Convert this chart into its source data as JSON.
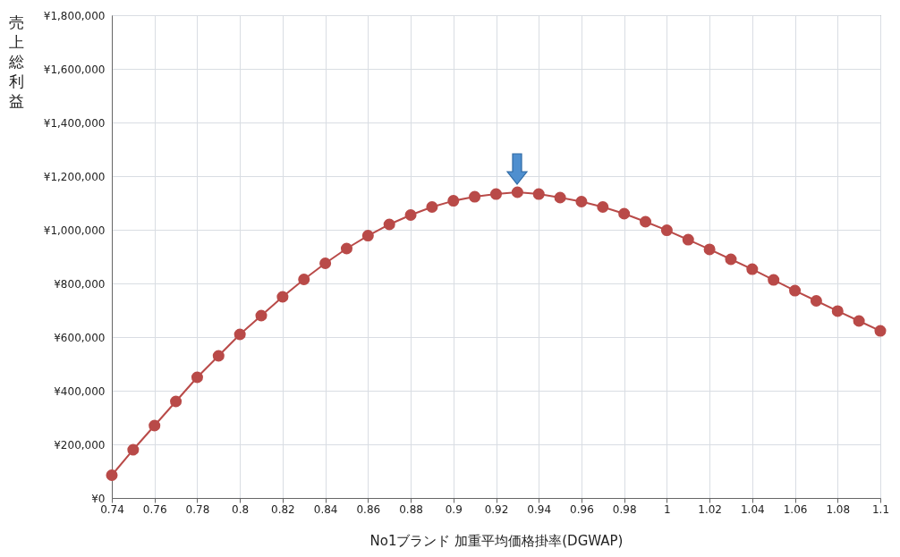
{
  "chart_data": {
    "type": "line",
    "xlabel": "No1ブランド 加重平均価格掛率(DGWAP)",
    "ylabel": "売上総利益",
    "x": [
      0.74,
      0.75,
      0.76,
      0.77,
      0.78,
      0.79,
      0.8,
      0.81,
      0.82,
      0.83,
      0.84,
      0.85,
      0.86,
      0.87,
      0.88,
      0.89,
      0.9,
      0.91,
      0.92,
      0.93,
      0.94,
      0.95,
      0.96,
      0.97,
      0.98,
      0.99,
      1,
      1.01,
      1.02,
      1.03,
      1.04,
      1.05,
      1.06,
      1.07,
      1.08,
      1.09,
      1.1
    ],
    "series": [
      {
        "color": "#b94a48",
        "values": [
          85000,
          180000,
          270000,
          360000,
          450000,
          530000,
          610000,
          680000,
          750000,
          815000,
          875000,
          930000,
          978000,
          1020000,
          1055000,
          1085000,
          1108000,
          1123000,
          1133000,
          1140000,
          1133000,
          1120000,
          1105000,
          1085000,
          1060000,
          1030000,
          998000,
          963000,
          927000,
          890000,
          853000,
          813000,
          773000,
          735000,
          697000,
          660000,
          623000
        ]
      }
    ],
    "xlim": [
      0.74,
      1.1
    ],
    "xticks": [
      0.74,
      0.76,
      0.78,
      0.8,
      0.82,
      0.84,
      0.86,
      0.88,
      0.9,
      0.92,
      0.94,
      0.96,
      0.98,
      1,
      1.02,
      1.04,
      1.06,
      1.08,
      1.1
    ],
    "ylim": [
      0,
      1800000
    ],
    "yticks": [
      {
        "value": 0,
        "label": "¥0"
      },
      {
        "value": 200000,
        "label": "¥200,000"
      },
      {
        "value": 400000,
        "label": "¥400,000"
      },
      {
        "value": 600000,
        "label": "¥600,000"
      },
      {
        "value": 800000,
        "label": "¥800,000"
      },
      {
        "value": 1000000,
        "label": "¥1,000,000"
      },
      {
        "value": 1200000,
        "label": "¥1,200,000"
      },
      {
        "value": 1400000,
        "label": "¥1,400,000"
      },
      {
        "value": 1600000,
        "label": "¥1,600,000"
      },
      {
        "value": 1800000,
        "label": "¥1,800,000"
      }
    ],
    "grid": true,
    "marker": "circle",
    "line_style": "solid"
  }
}
